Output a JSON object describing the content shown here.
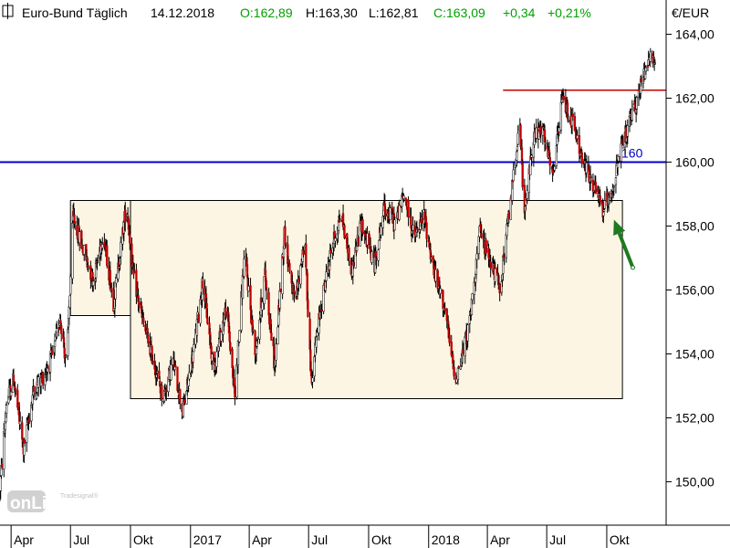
{
  "header": {
    "instrument": "Euro-Bund Täglich",
    "date": "14.12.2018",
    "open": "O:162,89",
    "high": "H:163,30",
    "low": "L:162,81",
    "close": "C:163,09",
    "change": "+0,34",
    "change_pct": "+0,21%"
  },
  "currency_label": "€/EUR",
  "colors": {
    "up_text": "#00a000",
    "candle_up": "#000000",
    "candle_down": "#c00000",
    "box_fill": "#fdf5e3",
    "level_blue": "#0000cc",
    "resistance_red": "#c00000",
    "arrow_green": "#1f7a1f"
  },
  "watermark": {
    "brand": "Tradesignal®",
    "text": "onLine"
  },
  "chart_data": {
    "type": "candlestick",
    "title": "Euro-Bund Täglich",
    "ylabel": "€/EUR",
    "ylim": [
      149,
      165
    ],
    "xlim": [
      "2016-03-15",
      "2018-12-31"
    ],
    "grid": false,
    "y_ticks": [
      "150,00",
      "152,00",
      "154,00",
      "156,00",
      "158,00",
      "160,00",
      "162,00",
      "164,00"
    ],
    "y_tick_values": [
      150,
      152,
      154,
      156,
      158,
      160,
      162,
      164
    ],
    "x_ticks": [
      {
        "label": "Apr",
        "date": "2016-04-01"
      },
      {
        "label": "Jul",
        "date": "2016-07-01"
      },
      {
        "label": "Okt",
        "date": "2016-10-01"
      },
      {
        "label": "2017",
        "date": "2017-01-01"
      },
      {
        "label": "Apr",
        "date": "2017-04-01"
      },
      {
        "label": "Jul",
        "date": "2017-07-01"
      },
      {
        "label": "Okt",
        "date": "2017-10-01"
      },
      {
        "label": "2018",
        "date": "2018-01-01"
      },
      {
        "label": "Apr",
        "date": "2018-04-01"
      },
      {
        "label": "Jul",
        "date": "2018-07-01"
      },
      {
        "label": "Okt",
        "date": "2018-10-01"
      }
    ],
    "path_keypoints": [
      [
        "2016-03-15",
        149.8
      ],
      [
        "2016-03-25",
        152.5
      ],
      [
        "2016-04-05",
        153.2
      ],
      [
        "2016-04-20",
        151.0
      ],
      [
        "2016-05-05",
        152.8
      ],
      [
        "2016-05-20",
        153.3
      ],
      [
        "2016-06-05",
        154.0
      ],
      [
        "2016-06-15",
        155.2
      ],
      [
        "2016-06-25",
        153.6
      ],
      [
        "2016-07-05",
        158.3
      ],
      [
        "2016-07-20",
        157.3
      ],
      [
        "2016-08-05",
        156.3
      ],
      [
        "2016-08-20",
        157.8
      ],
      [
        "2016-09-05",
        155.6
      ],
      [
        "2016-09-25",
        158.7
      ],
      [
        "2016-10-05",
        156.5
      ],
      [
        "2016-10-20",
        155.0
      ],
      [
        "2016-11-05",
        153.8
      ],
      [
        "2016-11-20",
        152.6
      ],
      [
        "2016-12-05",
        153.8
      ],
      [
        "2016-12-20",
        152.2
      ],
      [
        "2017-01-05",
        154.0
      ],
      [
        "2017-01-20",
        156.3
      ],
      [
        "2017-02-05",
        153.5
      ],
      [
        "2017-02-25",
        155.5
      ],
      [
        "2017-03-10",
        152.7
      ],
      [
        "2017-03-25",
        157.2
      ],
      [
        "2017-04-10",
        154.0
      ],
      [
        "2017-04-25",
        156.5
      ],
      [
        "2017-05-10",
        153.6
      ],
      [
        "2017-05-25",
        157.8
      ],
      [
        "2017-06-10",
        155.5
      ],
      [
        "2017-06-25",
        157.6
      ],
      [
        "2017-07-05",
        153.2
      ],
      [
        "2017-07-20",
        155.5
      ],
      [
        "2017-08-05",
        157.3
      ],
      [
        "2017-08-20",
        158.4
      ],
      [
        "2017-09-05",
        156.6
      ],
      [
        "2017-09-20",
        158.1
      ],
      [
        "2017-10-10",
        156.8
      ],
      [
        "2017-10-25",
        158.6
      ],
      [
        "2017-11-10",
        158.1
      ],
      [
        "2017-11-25",
        159.0
      ],
      [
        "2017-12-10",
        157.6
      ],
      [
        "2017-12-25",
        158.3
      ],
      [
        "2018-01-10",
        156.5
      ],
      [
        "2018-01-25",
        155.5
      ],
      [
        "2018-02-10",
        153.2
      ],
      [
        "2018-02-20",
        153.8
      ],
      [
        "2018-03-05",
        155.0
      ],
      [
        "2018-03-20",
        157.8
      ],
      [
        "2018-04-05",
        157.0
      ],
      [
        "2018-04-20",
        156.0
      ],
      [
        "2018-05-05",
        158.5
      ],
      [
        "2018-05-20",
        161.3
      ],
      [
        "2018-05-28",
        158.3
      ],
      [
        "2018-06-10",
        160.8
      ],
      [
        "2018-06-25",
        161.0
      ],
      [
        "2018-07-10",
        159.5
      ],
      [
        "2018-07-25",
        162.0
      ],
      [
        "2018-08-10",
        161.2
      ],
      [
        "2018-08-25",
        160.0
      ],
      [
        "2018-09-10",
        159.3
      ],
      [
        "2018-09-25",
        158.5
      ],
      [
        "2018-10-10",
        159.2
      ],
      [
        "2018-10-25",
        160.5
      ],
      [
        "2018-11-10",
        161.5
      ],
      [
        "2018-11-25",
        162.6
      ],
      [
        "2018-12-05",
        163.4
      ],
      [
        "2018-12-14",
        163.09
      ]
    ],
    "annotations": [
      {
        "type": "hline",
        "y": 160,
        "label": "160",
        "color": "blue"
      },
      {
        "type": "segment",
        "y": 162.25,
        "x_start": "2018-04-25",
        "x_end": "2018-12-31",
        "color": "red"
      },
      {
        "type": "box",
        "x0": "2016-07-01",
        "x1": "2016-10-01",
        "y0": 155.2,
        "y1": 158.8
      },
      {
        "type": "box",
        "x0": "2016-10-01",
        "x1": "2018-10-25",
        "y0": 152.6,
        "y1": 158.8
      },
      {
        "type": "arrow",
        "from": [
          "2018-11-10",
          156.7
        ],
        "to": [
          "2018-10-12",
          158.2
        ],
        "color": "green"
      }
    ]
  }
}
